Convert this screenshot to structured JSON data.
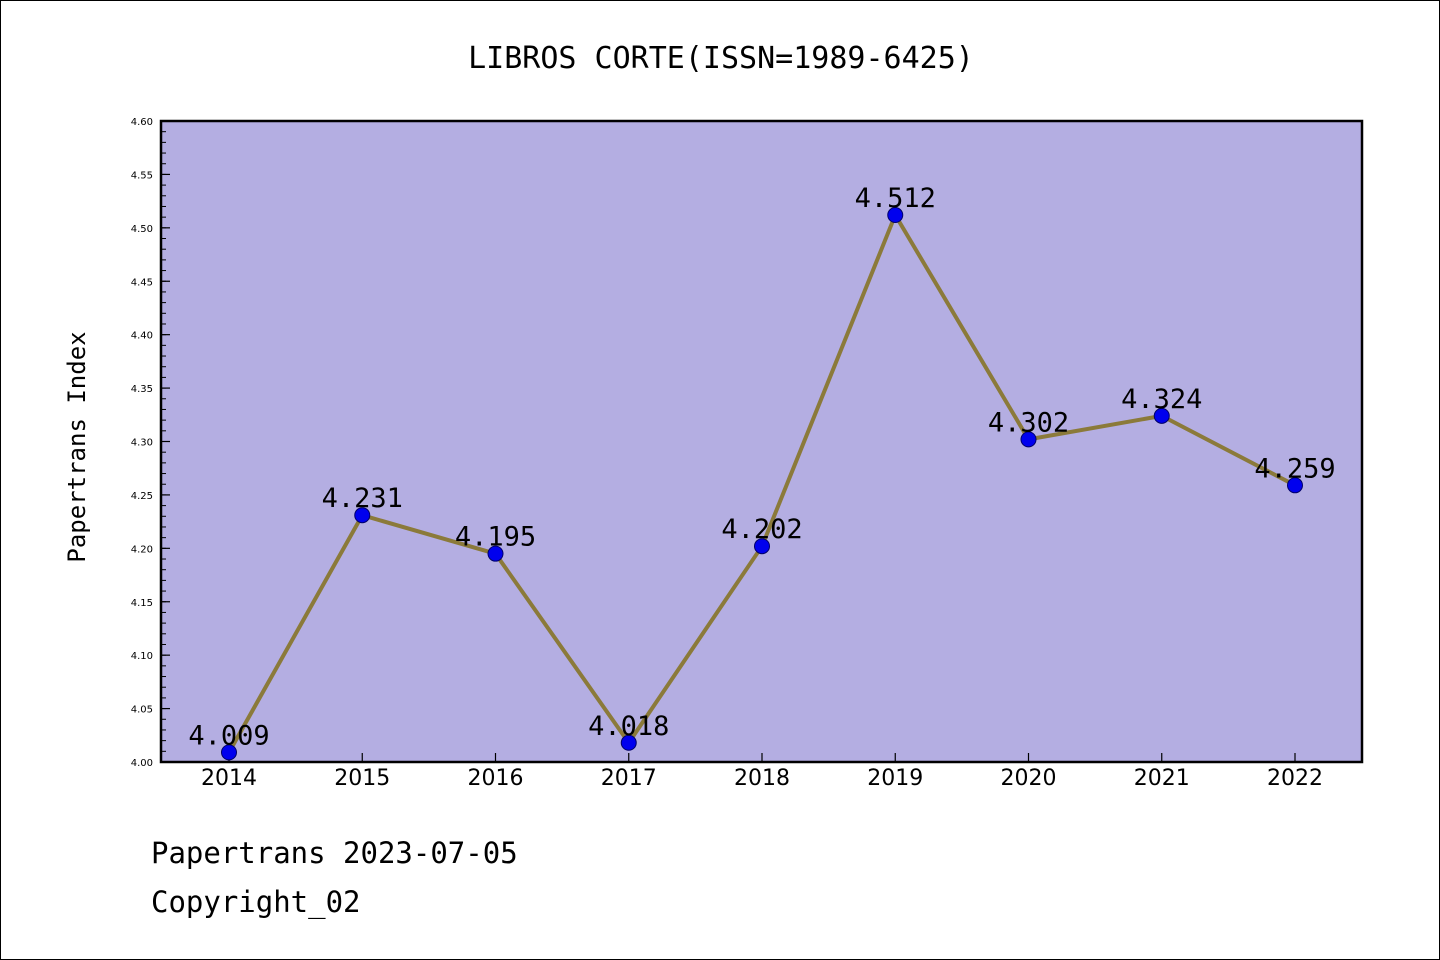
{
  "chart_data": {
    "type": "line",
    "title": "LIBROS CORTE(ISSN=1989-6425)",
    "xlabel": "",
    "ylabel": "Papertrans Index",
    "categories": [
      "2014",
      "2015",
      "2016",
      "2017",
      "2018",
      "2019",
      "2020",
      "2021",
      "2022"
    ],
    "series": [
      {
        "values": [
          4.009,
          4.231,
          4.195,
          4.018,
          4.202,
          4.512,
          4.302,
          4.324,
          4.259
        ],
        "data_labels": [
          "4.009",
          "4.231",
          "4.195",
          "4.018",
          "4.202",
          "4.512",
          "4.302",
          "4.324",
          "4.259"
        ]
      }
    ],
    "ylim": [
      4.0,
      4.6
    ],
    "yticks": [
      "4.00",
      "4.05",
      "4.10",
      "4.15",
      "4.20",
      "4.25",
      "4.30",
      "4.35",
      "4.40",
      "4.45",
      "4.50",
      "4.55",
      "4.60"
    ],
    "grid": false,
    "legend": "none",
    "colors": {
      "plot_background": "#b4aee2",
      "line": "#8b7a3a",
      "marker_fill": "#0000ee",
      "marker_edge": "#00006a"
    }
  },
  "footer": {
    "line1": "Papertrans 2023-07-05",
    "line2": "Copyright_02"
  }
}
